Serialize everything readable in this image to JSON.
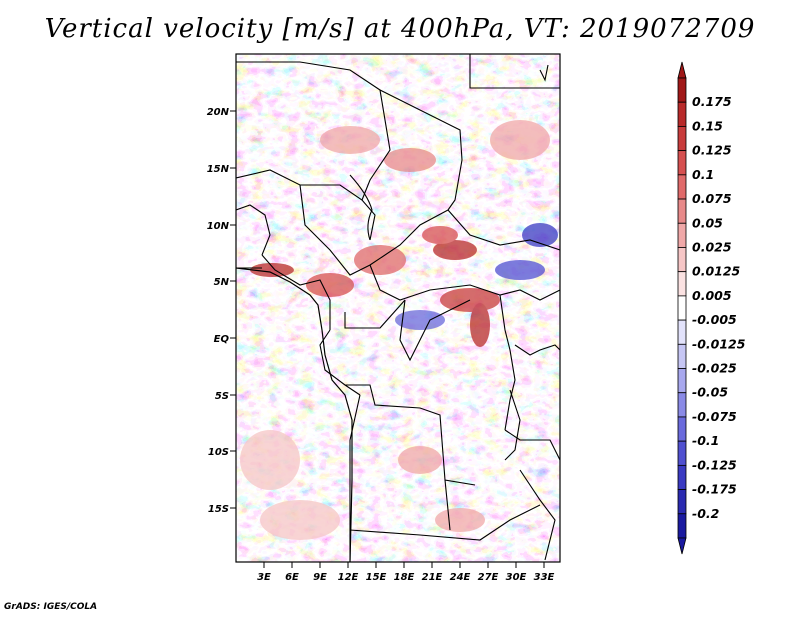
{
  "title": "Vertical velocity [m/s] at 400hPa, VT: 2019072709",
  "footer": "GrADS: IGES/COLA",
  "axes": {
    "lat_labels": [
      "20N",
      "15N",
      "10N",
      "5N",
      "EQ",
      "5S",
      "10S",
      "15S"
    ],
    "lon_labels": [
      "3E",
      "6E",
      "9E",
      "12E",
      "15E",
      "18E",
      "21E",
      "24E",
      "27E",
      "30E",
      "33E"
    ]
  },
  "colorbar": {
    "levels": [
      "0.175",
      "0.15",
      "0.125",
      "0.1",
      "0.075",
      "0.05",
      "0.025",
      "0.0125",
      "0.005",
      "-0.005",
      "-0.0125",
      "-0.025",
      "-0.05",
      "-0.075",
      "-0.1",
      "-0.125",
      "-0.175",
      "-0.2"
    ],
    "colors": [
      "#a01818",
      "#b82a2a",
      "#c83c3c",
      "#d65050",
      "#e06a6a",
      "#e88a8a",
      "#f0a8a8",
      "#f6c6c6",
      "#fbe2e2",
      "#ffffff",
      "#e2e2fb",
      "#c6c6f4",
      "#a8a8ee",
      "#8a8ae6",
      "#6a6adc",
      "#5050d0",
      "#3a3ac2",
      "#2a2ab0",
      "#1a1aa0"
    ]
  },
  "colors": {
    "positive": "#d94848",
    "negative": "#5a5ad8",
    "border": "#000000"
  }
}
